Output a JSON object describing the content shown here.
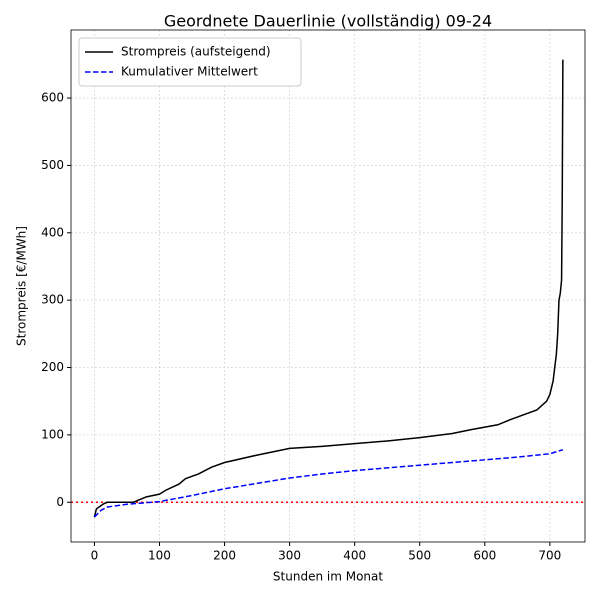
{
  "chart_data": {
    "type": "line",
    "title": "Geordnete Dauerlinie (vollständig) 09-24",
    "x_label": "Stunden im Monat",
    "y_label": "Strompreis [€/MWh]",
    "series": [
      {
        "name": "Strompreis (aufsteigend)",
        "color": "#000000",
        "linestyle": "solid",
        "x": [
          0,
          3,
          10,
          15,
          20,
          60,
          80,
          100,
          110,
          130,
          140,
          160,
          180,
          200,
          250,
          300,
          350,
          400,
          450,
          500,
          550,
          580,
          620,
          640,
          660,
          680,
          695,
          700,
          705,
          710,
          712,
          714,
          716,
          718,
          719,
          720
        ],
        "values": [
          -22,
          -10,
          -5,
          -2,
          0,
          0,
          8,
          12,
          18,
          27,
          35,
          42,
          52,
          59,
          70,
          80,
          83,
          87,
          91,
          96,
          102,
          108,
          115,
          123,
          130,
          137,
          150,
          160,
          180,
          220,
          250,
          300,
          310,
          330,
          450,
          657
        ]
      },
      {
        "name": "Kumulativer Mittelwert",
        "color": "#0000ff",
        "linestyle": "dashed",
        "x": [
          0,
          10,
          20,
          50,
          100,
          150,
          200,
          250,
          300,
          350,
          400,
          450,
          500,
          550,
          600,
          650,
          700,
          720
        ],
        "values": [
          -22,
          -12,
          -7,
          -3,
          1,
          10,
          20,
          28,
          36,
          42,
          47,
          51,
          55,
          59,
          63,
          67,
          72,
          78
        ]
      }
    ],
    "hline": {
      "value": 0,
      "color": "#ff0000"
    },
    "xlim": [
      -36,
      754
    ],
    "ylim": [
      -59,
      701
    ],
    "xticks": [
      0,
      100,
      200,
      300,
      400,
      500,
      600,
      700
    ],
    "yticks": [
      0,
      100,
      200,
      300,
      400,
      500,
      600
    ],
    "grid": true,
    "legend": "upper-left"
  }
}
